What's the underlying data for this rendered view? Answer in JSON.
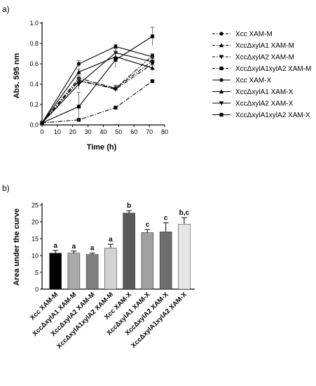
{
  "panel_a_label": "a)",
  "panel_b_label": "b)",
  "chart_data": [
    {
      "type": "line",
      "xlabel": "Time (h)",
      "ylabel": "Abs. 595 nm",
      "xlim": [
        0,
        80
      ],
      "ylim": [
        0,
        1.0
      ],
      "xticks": [
        "0",
        "10",
        "20",
        "30",
        "40",
        "50",
        "60",
        "70",
        "80"
      ],
      "yticks": [
        "0.0",
        "0.2",
        "0.4",
        "0.6",
        "0.8",
        "1.0"
      ],
      "x": [
        0,
        24,
        48,
        72
      ],
      "legend_position": "right",
      "series": [
        {
          "name": "Xcc XAM-M",
          "values": [
            0.02,
            0.46,
            0.36,
            0.68
          ],
          "err": [
            0,
            0.03,
            0.02,
            0.02
          ],
          "marker": "circle",
          "dash": "dashdot"
        },
        {
          "name": "XccΔxylA1 XAM-M",
          "values": [
            0.02,
            0.43,
            0.36,
            0.63
          ],
          "err": [
            0,
            0.03,
            0.03,
            0.02
          ],
          "marker": "triangle-up",
          "dash": "dashdot"
        },
        {
          "name": "XccΔxylA2 XAM-M",
          "values": [
            0.02,
            0.44,
            0.35,
            0.6
          ],
          "err": [
            0,
            0.03,
            0.02,
            0.02
          ],
          "marker": "triangle-down",
          "dash": "dashdot"
        },
        {
          "name": "XccΔxylA1xylA2 XAM-M",
          "values": [
            0.02,
            0.05,
            0.17,
            0.43
          ],
          "err": [
            0,
            0.01,
            0.01,
            0.01
          ],
          "marker": "square",
          "dash": "dashdot"
        },
        {
          "name": "Xcc XAM-X",
          "values": [
            0.02,
            0.6,
            0.77,
            0.67
          ],
          "err": [
            0,
            0.03,
            0.02,
            0.03
          ],
          "marker": "circle",
          "dash": "solid"
        },
        {
          "name": "XccΔxylA1 XAM-X",
          "values": [
            0.02,
            0.52,
            0.67,
            0.56
          ],
          "err": [
            0,
            0.03,
            0.03,
            0.03
          ],
          "marker": "triangle-up",
          "dash": "solid"
        },
        {
          "name": "XccΔxylA2 XAM-X",
          "values": [
            0.02,
            0.4,
            0.71,
            0.62
          ],
          "err": [
            0,
            0.05,
            0.04,
            0.05
          ],
          "marker": "triangle-down",
          "dash": "solid"
        },
        {
          "name": "XccΔxylA1xylA2 XAM-X",
          "values": [
            0.02,
            0.18,
            0.64,
            0.87
          ],
          "err": [
            0,
            0.14,
            0.08,
            0.09
          ],
          "marker": "square",
          "dash": "solid"
        }
      ]
    },
    {
      "type": "bar",
      "ylabel": "Area under the curve",
      "ylim": [
        0,
        25
      ],
      "yticks": [
        "0",
        "5",
        "10",
        "15",
        "20",
        "25"
      ],
      "categories": [
        "Xcc XAM-M",
        "XccΔxylA1 XAM-M",
        "XccΔxylA2 XAM-M",
        "XccΔxylA1xylA2 XAM-M",
        "Xcc XAM-X",
        "XccΔxylA1 XAM-X",
        "XccΔxylA2 XAM-X",
        "XccΔxylA1xylA2 XAM-X"
      ],
      "values": [
        10.7,
        10.7,
        10.3,
        12.2,
        22.6,
        16.8,
        17.0,
        19.3
      ],
      "err": [
        0.8,
        0.6,
        0.4,
        1.1,
        0.7,
        0.9,
        2.7,
        1.9
      ],
      "significance": [
        "a",
        "a",
        "a",
        "a",
        "b",
        "c",
        "c",
        "b,c"
      ],
      "colors": [
        "#000000",
        "#a9a9a9",
        "#808080",
        "#d3d3d3",
        "#5a5a5a",
        "#a0a0a0",
        "#6e6e6e",
        "#e6e6e6"
      ]
    }
  ]
}
